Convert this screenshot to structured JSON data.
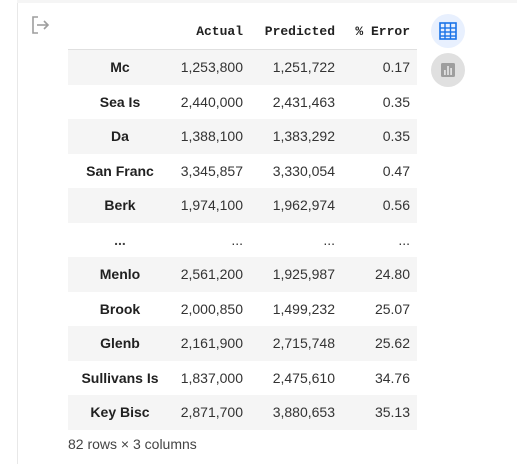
{
  "table": {
    "columns": [
      "Actual",
      "Predicted",
      "% Error"
    ],
    "rows": [
      {
        "index": "Mc",
        "actual": "1,253,800",
        "predicted": "1,251,722",
        "error": "0.17"
      },
      {
        "index": "Sea Is",
        "actual": "2,440,000",
        "predicted": "2,431,463",
        "error": "0.35"
      },
      {
        "index": "Da",
        "actual": "1,388,100",
        "predicted": "1,383,292",
        "error": "0.35"
      },
      {
        "index": "San Franc",
        "actual": "3,345,857",
        "predicted": "3,330,054",
        "error": "0.47"
      },
      {
        "index": "Berk",
        "actual": "1,974,100",
        "predicted": "1,962,974",
        "error": "0.56"
      },
      {
        "index": "...",
        "actual": "...",
        "predicted": "...",
        "error": "..."
      },
      {
        "index": "Menlo",
        "actual": "2,561,200",
        "predicted": "1,925,987",
        "error": "24.80"
      },
      {
        "index": "Brook",
        "actual": "2,000,850",
        "predicted": "1,499,232",
        "error": "25.07"
      },
      {
        "index": "Glenb",
        "actual": "2,161,900",
        "predicted": "2,715,748",
        "error": "25.62"
      },
      {
        "index": "Sullivans Is",
        "actual": "1,837,000",
        "predicted": "2,475,610",
        "error": "34.76"
      },
      {
        "index": "Key Bisc",
        "actual": "2,871,700",
        "predicted": "3,880,653",
        "error": "35.13"
      }
    ]
  },
  "shape_label": "82 rows × 3 columns",
  "icons": {
    "output": "output-arrow-icon",
    "table_view": "table-view-icon",
    "chart_view": "bar-chart-icon"
  },
  "colors": {
    "accent": "#1a73e8",
    "row_stripe": "#f5f5f5",
    "icon_grey": "#9e9e9e"
  }
}
